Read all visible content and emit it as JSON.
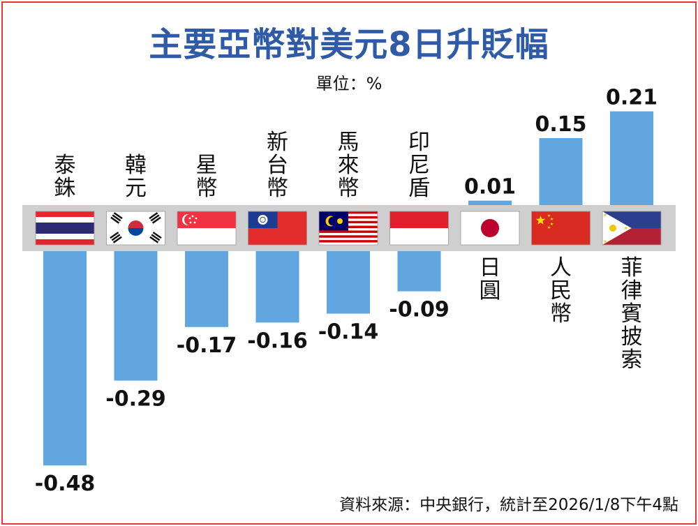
{
  "title": "主要亞幣對美元8日升貶幅",
  "unit": "單位：%",
  "source": "資料來源：中央銀行，統計至2026/1/8下午4點",
  "colors": {
    "bar": "#62a6e0",
    "title": "#2e5aa8",
    "band": "#cfcfcf",
    "frame": "#e53935"
  },
  "chart_data": {
    "type": "bar",
    "title": "主要亞幣對美元8日升貶幅",
    "ylabel": "單位：%",
    "xlabel": "",
    "categories": [
      "泰銖",
      "韓元",
      "星幣",
      "新台幣",
      "馬來幣",
      "印尼盾",
      "日圓",
      "人民幣",
      "菲律賓披索"
    ],
    "values": [
      -0.48,
      -0.29,
      -0.17,
      -0.16,
      -0.14,
      -0.09,
      0.01,
      0.15,
      0.21
    ],
    "value_labels": [
      "-0.48",
      "-0.29",
      "-0.17",
      "-0.16",
      "-0.14",
      "-0.09",
      "0.01",
      "0.15",
      "0.21"
    ],
    "flag_icons": [
      "thailand-flag-icon",
      "south-korea-flag-icon",
      "singapore-flag-icon",
      "taiwan-flag-icon",
      "malaysia-flag-icon",
      "indonesia-flag-icon",
      "japan-flag-icon",
      "china-flag-icon",
      "philippines-flag-icon"
    ],
    "grid": false,
    "legend": "none"
  }
}
